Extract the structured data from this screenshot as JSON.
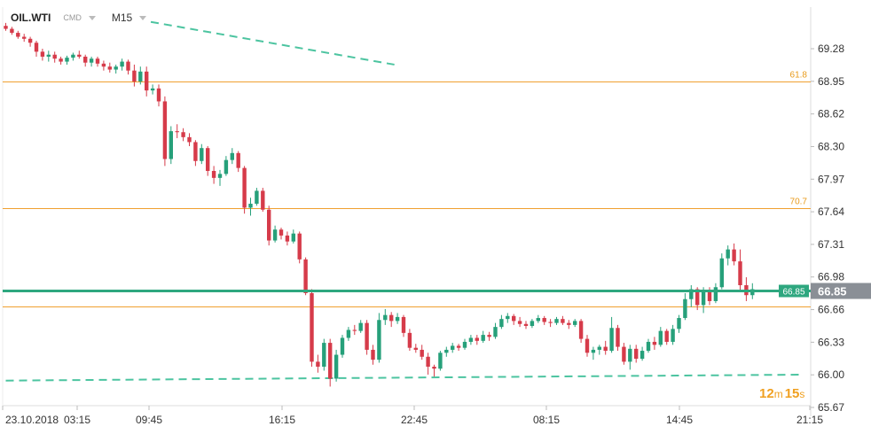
{
  "header": {
    "symbol": "OIL.WTI",
    "category": "CMD",
    "timeframe": "M15"
  },
  "timer": {
    "minutes": "12",
    "min_unit": "m",
    "seconds": "15",
    "sec_unit": "s"
  },
  "colors": {
    "up": "#26a07a",
    "down": "#d63b4a",
    "fib": "#f0a030",
    "trend": "#4cc4a0",
    "price": "#2ea77f",
    "grid": "#dddddd"
  },
  "chart_data": {
    "type": "candlestick",
    "y_ticks": [
      "69.28",
      "68.95",
      "68.62",
      "68.30",
      "67.97",
      "67.64",
      "67.31",
      "66.98",
      "66.66",
      "66.33",
      "66.00",
      "65.67"
    ],
    "x_ticks": [
      "23.10.2018",
      "03:15",
      "09:45",
      "16:15",
      "22:45",
      "08:15",
      "14:45",
      "21:15"
    ],
    "ylim": [
      65.67,
      69.28
    ],
    "fib_levels": [
      {
        "label": "61.8",
        "value": 68.95
      },
      {
        "label": "70.7",
        "value": 67.68
      },
      {
        "label": "",
        "value": 66.69
      }
    ],
    "current_price": {
      "label": "66.85",
      "value": 66.85
    },
    "secondary_price_label": "66.85",
    "trendlines": [
      {
        "points": [
          [
            23.7,
            69.55
          ],
          [
            63.5,
            69.12
          ]
        ]
      },
      {
        "points": [
          [
            0,
            65.94
          ],
          [
            70,
            66.0
          ]
        ]
      }
    ],
    "candles": [
      [
        69.51,
        69.54,
        69.46,
        69.48
      ],
      [
        69.48,
        69.5,
        69.42,
        69.44
      ],
      [
        69.44,
        69.46,
        69.38,
        69.4
      ],
      [
        69.4,
        69.43,
        69.35,
        69.38
      ],
      [
        69.38,
        69.4,
        69.3,
        69.34
      ],
      [
        69.34,
        69.36,
        69.2,
        69.25
      ],
      [
        69.25,
        69.28,
        69.16,
        69.2
      ],
      [
        69.2,
        69.26,
        69.15,
        69.22
      ],
      [
        69.22,
        69.25,
        69.14,
        69.18
      ],
      [
        69.18,
        69.2,
        69.12,
        69.15
      ],
      [
        69.15,
        69.21,
        69.12,
        69.19
      ],
      [
        69.19,
        69.24,
        69.16,
        69.22
      ],
      [
        69.22,
        69.26,
        69.18,
        69.2
      ],
      [
        69.2,
        69.22,
        69.1,
        69.14
      ],
      [
        69.14,
        69.2,
        69.1,
        69.18
      ],
      [
        69.18,
        69.2,
        69.1,
        69.13
      ],
      [
        69.13,
        69.16,
        69.06,
        69.1
      ],
      [
        69.1,
        69.14,
        69.04,
        69.07
      ],
      [
        69.07,
        69.12,
        69.03,
        69.1
      ],
      [
        69.1,
        69.18,
        69.06,
        69.15
      ],
      [
        69.15,
        69.17,
        69.02,
        69.06
      ],
      [
        69.06,
        69.12,
        68.9,
        68.95
      ],
      [
        68.95,
        69.1,
        68.92,
        69.05
      ],
      [
        69.05,
        69.1,
        68.8,
        68.86
      ],
      [
        68.86,
        68.92,
        68.82,
        68.88
      ],
      [
        68.88,
        68.92,
        68.7,
        68.75
      ],
      [
        68.75,
        68.8,
        68.1,
        68.17
      ],
      [
        68.17,
        68.5,
        68.12,
        68.45
      ],
      [
        68.45,
        68.52,
        68.38,
        68.44
      ],
      [
        68.44,
        68.48,
        68.35,
        68.39
      ],
      [
        68.39,
        68.43,
        68.3,
        68.34
      ],
      [
        68.34,
        68.36,
        68.1,
        68.15
      ],
      [
        68.15,
        68.32,
        68.12,
        68.28
      ],
      [
        68.28,
        68.3,
        68.0,
        68.05
      ],
      [
        68.05,
        68.1,
        67.92,
        67.98
      ],
      [
        67.98,
        68.06,
        67.9,
        68.02
      ],
      [
        68.02,
        68.2,
        68.0,
        68.16
      ],
      [
        68.16,
        68.28,
        68.12,
        68.23
      ],
      [
        68.23,
        68.25,
        68.04,
        68.08
      ],
      [
        68.08,
        68.1,
        67.62,
        67.68
      ],
      [
        67.68,
        67.78,
        67.6,
        67.72
      ],
      [
        67.72,
        67.88,
        67.7,
        67.85
      ],
      [
        67.85,
        67.88,
        67.64,
        67.66
      ],
      [
        67.66,
        67.7,
        67.3,
        67.35
      ],
      [
        67.35,
        67.5,
        67.33,
        67.46
      ],
      [
        67.46,
        67.48,
        67.36,
        67.4
      ],
      [
        67.4,
        67.44,
        67.3,
        67.34
      ],
      [
        67.34,
        67.46,
        67.32,
        67.42
      ],
      [
        67.42,
        67.44,
        67.12,
        67.16
      ],
      [
        67.16,
        67.18,
        66.8,
        66.82
      ],
      [
        66.82,
        66.86,
        66.08,
        66.13
      ],
      [
        66.13,
        66.2,
        66.02,
        66.08
      ],
      [
        66.08,
        66.36,
        66.04,
        66.32
      ],
      [
        66.32,
        66.36,
        65.88,
        65.96
      ],
      [
        65.96,
        66.25,
        65.93,
        66.2
      ],
      [
        66.2,
        66.4,
        66.17,
        66.37
      ],
      [
        66.37,
        66.48,
        66.34,
        66.45
      ],
      [
        66.45,
        66.5,
        66.4,
        66.44
      ],
      [
        66.44,
        66.55,
        66.42,
        66.52
      ],
      [
        66.52,
        66.55,
        66.2,
        66.25
      ],
      [
        66.25,
        66.3,
        66.1,
        66.15
      ],
      [
        66.15,
        66.62,
        66.12,
        66.55
      ],
      [
        66.55,
        66.66,
        66.5,
        66.6
      ],
      [
        66.6,
        66.63,
        66.48,
        66.54
      ],
      [
        66.54,
        66.62,
        66.51,
        66.58
      ],
      [
        66.58,
        66.6,
        66.38,
        66.42
      ],
      [
        66.42,
        66.46,
        66.24,
        66.27
      ],
      [
        66.27,
        66.31,
        66.22,
        66.25
      ],
      [
        66.25,
        66.3,
        66.15,
        66.18
      ],
      [
        66.18,
        66.22,
        66.0,
        66.08
      ],
      [
        66.08,
        66.1,
        65.98,
        66.06
      ],
      [
        66.06,
        66.24,
        66.04,
        66.22
      ],
      [
        66.22,
        66.28,
        66.18,
        66.25
      ],
      [
        66.25,
        66.32,
        66.22,
        66.29
      ],
      [
        66.29,
        66.31,
        66.24,
        66.27
      ],
      [
        66.27,
        66.36,
        66.25,
        66.33
      ],
      [
        66.33,
        66.4,
        66.3,
        66.37
      ],
      [
        66.37,
        66.4,
        66.3,
        66.34
      ],
      [
        66.34,
        66.44,
        66.32,
        66.4
      ],
      [
        66.4,
        66.43,
        66.34,
        66.38
      ],
      [
        66.38,
        66.52,
        66.36,
        66.48
      ],
      [
        66.48,
        66.6,
        66.46,
        66.56
      ],
      [
        66.56,
        66.62,
        66.52,
        66.59
      ],
      [
        66.59,
        66.61,
        66.5,
        66.54
      ],
      [
        66.54,
        66.58,
        66.48,
        66.51
      ],
      [
        66.51,
        66.54,
        66.46,
        66.49
      ],
      [
        66.49,
        66.56,
        66.47,
        66.54
      ],
      [
        66.54,
        66.6,
        66.52,
        66.57
      ],
      [
        66.57,
        66.59,
        66.5,
        66.53
      ],
      [
        66.53,
        66.56,
        66.48,
        66.52
      ],
      [
        66.52,
        66.58,
        66.5,
        66.56
      ],
      [
        66.56,
        66.59,
        66.5,
        66.52
      ],
      [
        66.52,
        66.55,
        66.46,
        66.5
      ],
      [
        66.5,
        66.56,
        66.48,
        66.54
      ],
      [
        66.54,
        66.56,
        66.32,
        66.36
      ],
      [
        66.36,
        66.4,
        66.18,
        66.22
      ],
      [
        66.22,
        66.28,
        66.15,
        66.25
      ],
      [
        66.25,
        66.3,
        66.2,
        66.28
      ],
      [
        66.28,
        66.34,
        66.2,
        66.24
      ],
      [
        66.24,
        66.58,
        66.22,
        66.47
      ],
      [
        66.47,
        66.5,
        66.24,
        66.28
      ],
      [
        66.28,
        66.32,
        66.1,
        66.13
      ],
      [
        66.13,
        66.3,
        66.05,
        66.26
      ],
      [
        66.26,
        66.3,
        66.12,
        66.16
      ],
      [
        66.16,
        66.28,
        66.14,
        66.24
      ],
      [
        66.24,
        66.36,
        66.22,
        66.33
      ],
      [
        66.33,
        66.38,
        66.25,
        66.3
      ],
      [
        66.3,
        66.48,
        66.28,
        66.44
      ],
      [
        66.44,
        66.46,
        66.3,
        66.33
      ],
      [
        66.33,
        66.5,
        66.3,
        66.46
      ],
      [
        66.46,
        66.6,
        66.42,
        66.57
      ],
      [
        66.57,
        66.82,
        66.55,
        66.76
      ],
      [
        66.76,
        66.9,
        66.68,
        66.86
      ],
      [
        66.86,
        66.88,
        66.65,
        66.7
      ],
      [
        66.7,
        66.88,
        66.62,
        66.84
      ],
      [
        66.84,
        66.88,
        66.7,
        66.74
      ],
      [
        66.74,
        66.92,
        66.72,
        66.88
      ],
      [
        66.88,
        67.22,
        66.86,
        67.17
      ],
      [
        67.17,
        67.3,
        67.1,
        67.26
      ],
      [
        67.26,
        67.32,
        67.1,
        67.14
      ],
      [
        67.14,
        67.26,
        66.85,
        66.9
      ],
      [
        66.9,
        66.98,
        66.74,
        66.8
      ],
      [
        66.8,
        66.92,
        66.76,
        66.86
      ]
    ]
  }
}
